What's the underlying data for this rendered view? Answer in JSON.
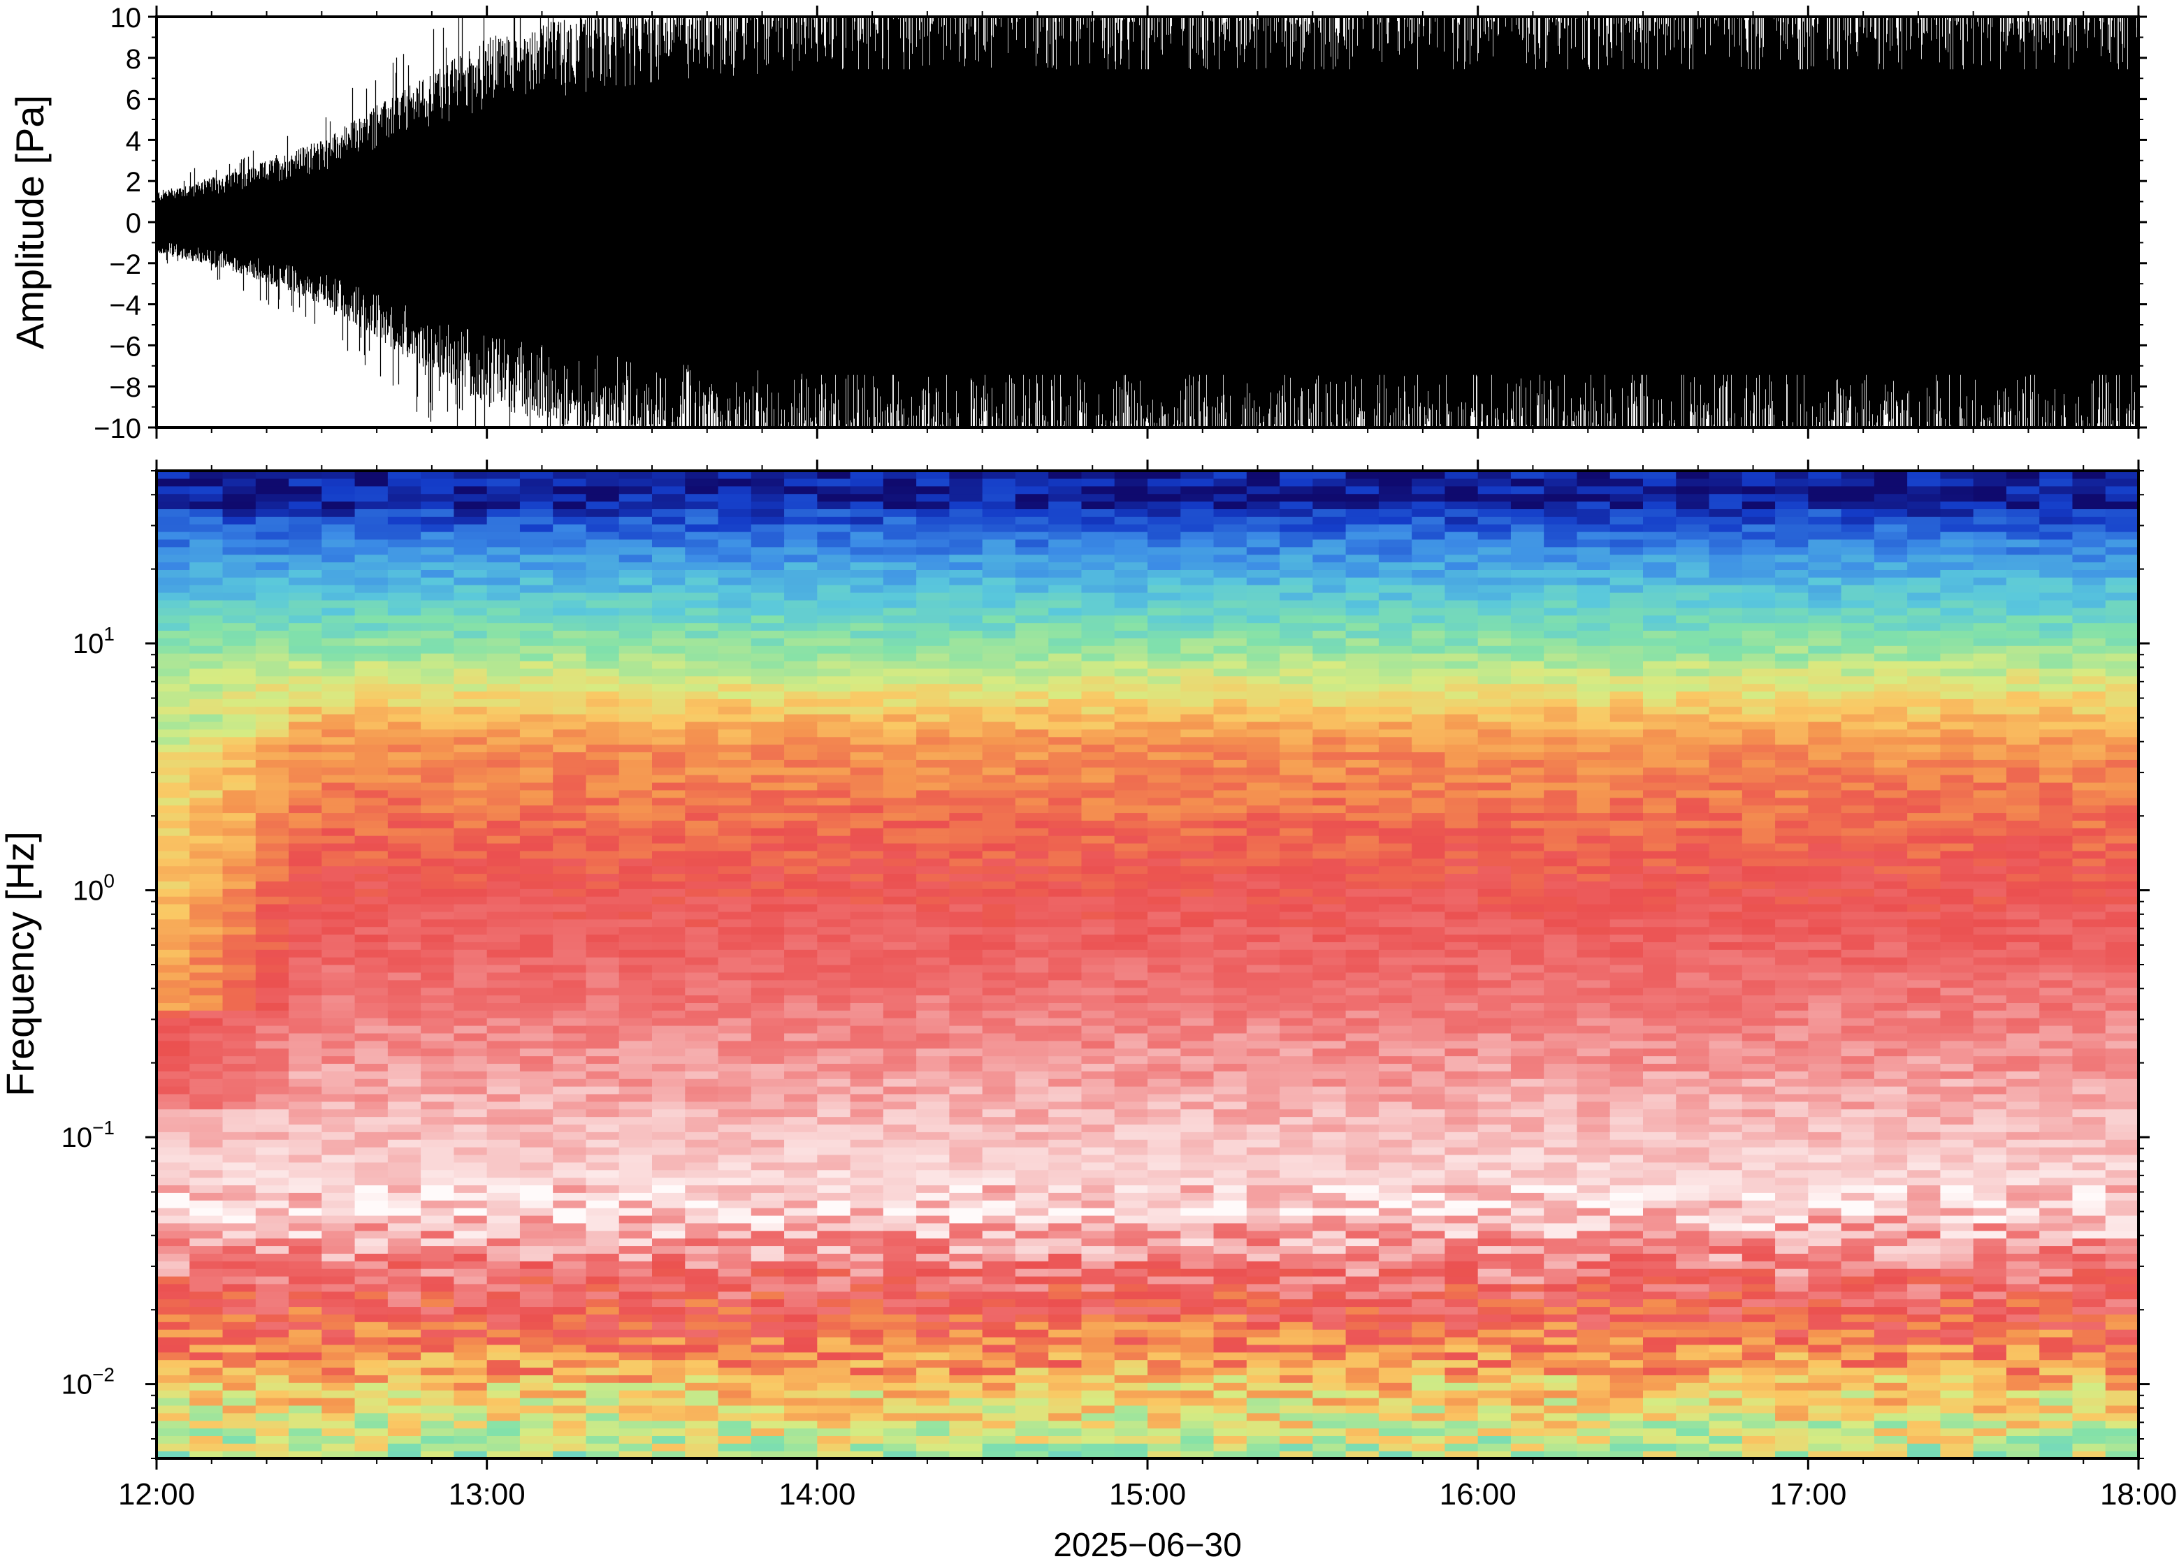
{
  "chart_data": [
    {
      "type": "line",
      "panel": "waveform",
      "ylabel": "Amplitude [Pa]",
      "ylim": [
        -10,
        10
      ],
      "yticks": [
        -10,
        -8,
        -6,
        -4,
        -2,
        0,
        2,
        4,
        6,
        8,
        10
      ],
      "ytick_labels": [
        "−10",
        "−8",
        "−6",
        "−4",
        "−2",
        "0",
        "2",
        "4",
        "6",
        "8",
        "10"
      ],
      "xlim": [
        "12:00",
        "18:00"
      ],
      "grid": false,
      "envelope": {
        "description_free_values": true,
        "x_hours": [
          12.0,
          12.25,
          12.5,
          12.75,
          13.0,
          13.5,
          14.0,
          14.5,
          15.0,
          16.0,
          17.0,
          18.0
        ],
        "amplitude": [
          1.5,
          2.5,
          4.0,
          6.5,
          9.0,
          11.0,
          12.0,
          12.0,
          12.0,
          12.0,
          12.0,
          12.0
        ]
      },
      "color": "#000000"
    },
    {
      "type": "heatmap",
      "panel": "spectrogram",
      "ylabel": "Frequency [Hz]",
      "yscale": "log",
      "ylim": [
        0.005,
        50
      ],
      "yticks": [
        0.01,
        0.1,
        1,
        10
      ],
      "ytick_labels": [
        {
          "base": "10",
          "exp": "−2"
        },
        {
          "base": "10",
          "exp": "−1"
        },
        {
          "base": "10",
          "exp": "0"
        },
        {
          "base": "10",
          "exp": "1"
        }
      ],
      "xlabel": "2025−06−30",
      "xlim": [
        "12:00",
        "18:00"
      ],
      "xticks": [
        "12:00",
        "13:00",
        "14:00",
        "15:00",
        "16:00",
        "17:00",
        "18:00"
      ],
      "colormap": "spectral",
      "time_columns": 60,
      "freq_rows": 130
    }
  ]
}
